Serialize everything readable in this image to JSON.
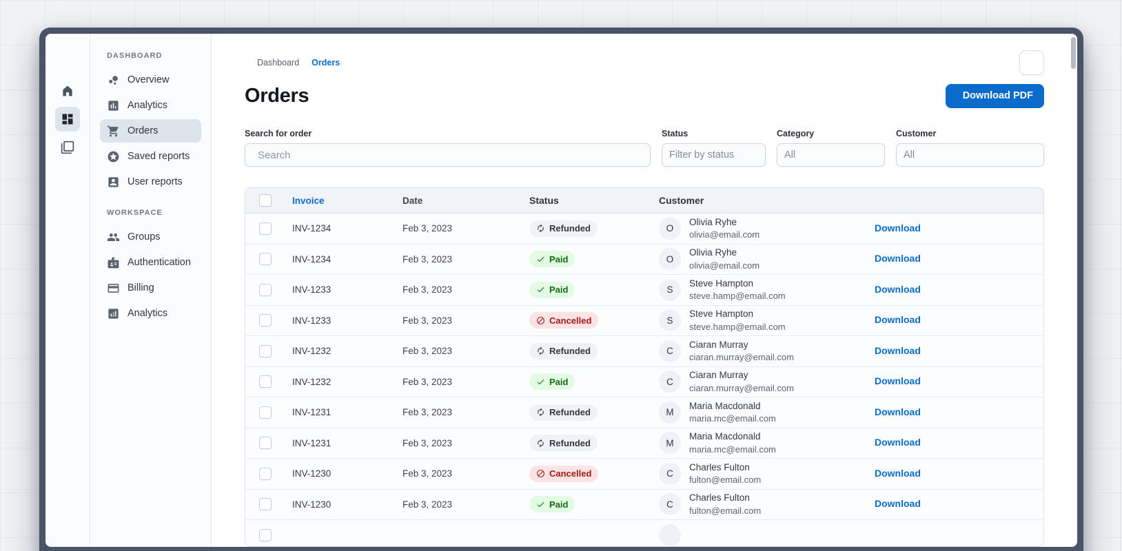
{
  "theme": {
    "primary": "#0B6BCB",
    "frame_color": "#4A5468",
    "selected_bg": "#DDE4EC",
    "chip_neutral_bg": "#F0F2F6",
    "chip_neutral_text": "#32383E",
    "chip_success_bg": "#E3FBE3",
    "chip_success_text": "#136C13",
    "chip_danger_bg": "#FCE4E4",
    "chip_danger_text": "#A51818"
  },
  "rail": {
    "logo_icon": "mui-logo",
    "buttons": [
      {
        "icon": "home",
        "name": "home",
        "selected": false
      },
      {
        "icon": "dashboard",
        "name": "dashboard",
        "selected": true
      },
      {
        "icon": "stacked-windows",
        "name": "stacked-windows",
        "selected": false
      }
    ]
  },
  "sidebar": {
    "sections": [
      {
        "label": "DASHBOARD",
        "items": [
          {
            "icon": "bubble-chart",
            "label": "Overview",
            "selected": false
          },
          {
            "icon": "chart-square",
            "label": "Analytics",
            "selected": false
          },
          {
            "icon": "cart",
            "label": "Orders",
            "selected": true
          },
          {
            "icon": "star-circle",
            "label": "Saved reports",
            "selected": false
          },
          {
            "icon": "person-card",
            "label": "User reports",
            "selected": false
          }
        ]
      },
      {
        "label": "WORKSPACE",
        "items": [
          {
            "icon": "people",
            "label": "Groups",
            "selected": false
          },
          {
            "icon": "badge",
            "label": "Authentication",
            "selected": false
          },
          {
            "icon": "credit-card",
            "label": "Billing",
            "selected": false
          },
          {
            "icon": "analytics-square",
            "label": "Analytics",
            "selected": false
          }
        ]
      }
    ]
  },
  "breadcrumb": {
    "home_icon": "home",
    "items": [
      "Dashboard",
      "Orders"
    ]
  },
  "page": {
    "title": "Orders",
    "download_button": "Download PDF",
    "download_icon": "download",
    "theme_toggle_icon": "moon"
  },
  "filters": {
    "search": {
      "label": "Search for order",
      "placeholder": "Search",
      "icon": "search"
    },
    "selects": [
      {
        "label": "Status",
        "value": "Filter by status"
      },
      {
        "label": "Category",
        "value": "All"
      },
      {
        "label": "Customer",
        "value": "All"
      }
    ]
  },
  "table": {
    "header": {
      "columns": [
        "Invoice",
        "Date",
        "Status",
        "Customer"
      ],
      "sorted_column": "Invoice"
    },
    "status_icons": {
      "neutral": "refresh",
      "success": "check",
      "danger": "block"
    },
    "row_action": "Download",
    "rows": [
      {
        "invoice": "INV-1234",
        "date": "Feb 3, 2023",
        "status": "Refunded",
        "status_type": "neutral",
        "initial": "O",
        "name": "Olivia Ryhe",
        "email": "olivia@email.com"
      },
      {
        "invoice": "INV-1234",
        "date": "Feb 3, 2023",
        "status": "Paid",
        "status_type": "success",
        "initial": "O",
        "name": "Olivia Ryhe",
        "email": "olivia@email.com"
      },
      {
        "invoice": "INV-1233",
        "date": "Feb 3, 2023",
        "status": "Paid",
        "status_type": "success",
        "initial": "S",
        "name": "Steve Hampton",
        "email": "steve.hamp@email.com"
      },
      {
        "invoice": "INV-1233",
        "date": "Feb 3, 2023",
        "status": "Cancelled",
        "status_type": "danger",
        "initial": "S",
        "name": "Steve Hampton",
        "email": "steve.hamp@email.com"
      },
      {
        "invoice": "INV-1232",
        "date": "Feb 3, 2023",
        "status": "Refunded",
        "status_type": "neutral",
        "initial": "C",
        "name": "Ciaran Murray",
        "email": "ciaran.murray@email.com"
      },
      {
        "invoice": "INV-1232",
        "date": "Feb 3, 2023",
        "status": "Paid",
        "status_type": "success",
        "initial": "C",
        "name": "Ciaran Murray",
        "email": "ciaran.murray@email.com"
      },
      {
        "invoice": "INV-1231",
        "date": "Feb 3, 2023",
        "status": "Refunded",
        "status_type": "neutral",
        "initial": "M",
        "name": "Maria Macdonald",
        "email": "maria.mc@email.com"
      },
      {
        "invoice": "INV-1231",
        "date": "Feb 3, 2023",
        "status": "Refunded",
        "status_type": "neutral",
        "initial": "M",
        "name": "Maria Macdonald",
        "email": "maria.mc@email.com"
      },
      {
        "invoice": "INV-1230",
        "date": "Feb 3, 2023",
        "status": "Cancelled",
        "status_type": "danger",
        "initial": "C",
        "name": "Charles Fulton",
        "email": "fulton@email.com"
      },
      {
        "invoice": "INV-1230",
        "date": "Feb 3, 2023",
        "status": "Paid",
        "status_type": "success",
        "initial": "C",
        "name": "Charles Fulton",
        "email": "fulton@email.com"
      }
    ],
    "partial_row_visible": true
  }
}
